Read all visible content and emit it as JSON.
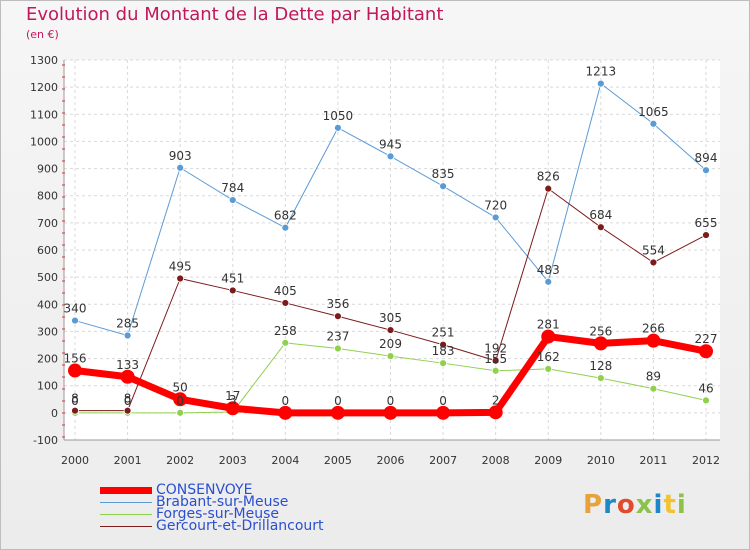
{
  "header": {
    "title": "Evolution du Montant de la Dette par Habitant",
    "subtitle": "(en €)"
  },
  "logo": {
    "text": "Proxiti",
    "colors": [
      "#e8a23a",
      "#1c87c9",
      "#e04b2f",
      "#8bc34a",
      "#1c87c9",
      "#f1c232",
      "#8bc34a"
    ]
  },
  "chart_data": {
    "type": "line",
    "title": "Evolution du Montant de la Dette par Habitant",
    "subtitle": "(en €)",
    "xlabel": "",
    "ylabel": "",
    "categories": [
      "2000",
      "2001",
      "2002",
      "2003",
      "2004",
      "2005",
      "2006",
      "2007",
      "2008",
      "2009",
      "2010",
      "2011",
      "2012"
    ],
    "ylim": [
      -100,
      1300
    ],
    "yticks": [
      -100,
      0,
      100,
      200,
      300,
      400,
      500,
      600,
      700,
      800,
      900,
      1000,
      1100,
      1200,
      1300
    ],
    "grid": true,
    "legend_position": "bottom-left",
    "series": [
      {
        "name": "CONSENVOYE",
        "color": "#ff0000",
        "width": 7,
        "values": [
          156,
          133,
          50,
          17,
          0,
          0,
          0,
          0,
          2,
          281,
          256,
          266,
          227
        ],
        "labels": [
          "156",
          "133",
          "50",
          "17",
          "0",
          "0",
          "0",
          "0",
          "2",
          "281",
          "256",
          "266",
          "227"
        ]
      },
      {
        "name": "Brabant-sur-Meuse",
        "color": "#5b9bd5",
        "width": 1,
        "values": [
          340,
          285,
          903,
          784,
          682,
          1050,
          945,
          835,
          720,
          483,
          1213,
          1065,
          894
        ],
        "labels": [
          "340",
          "285",
          "903",
          "784",
          "682",
          "1050",
          "945",
          "835",
          "720",
          "483",
          "1213",
          "1065",
          "894"
        ]
      },
      {
        "name": "Forges-sur-Meuse",
        "color": "#8fd14f",
        "width": 1,
        "values": [
          0,
          0,
          0,
          3,
          258,
          237,
          209,
          183,
          155,
          162,
          128,
          89,
          46
        ],
        "labels": [
          "0",
          "0",
          "0",
          "3",
          "258",
          "237",
          "209",
          "183",
          "155",
          "162",
          "128",
          "89",
          "46"
        ]
      },
      {
        "name": "Gercourt-et-Drillancourt",
        "color": "#7b1b1b",
        "width": 1,
        "values": [
          8,
          8,
          495,
          451,
          405,
          356,
          305,
          251,
          192,
          826,
          684,
          554,
          655
        ],
        "labels": [
          "8",
          "8",
          "495",
          "451",
          "405",
          "356",
          "305",
          "251",
          "192",
          "826",
          "684",
          "554",
          "655"
        ]
      }
    ]
  }
}
